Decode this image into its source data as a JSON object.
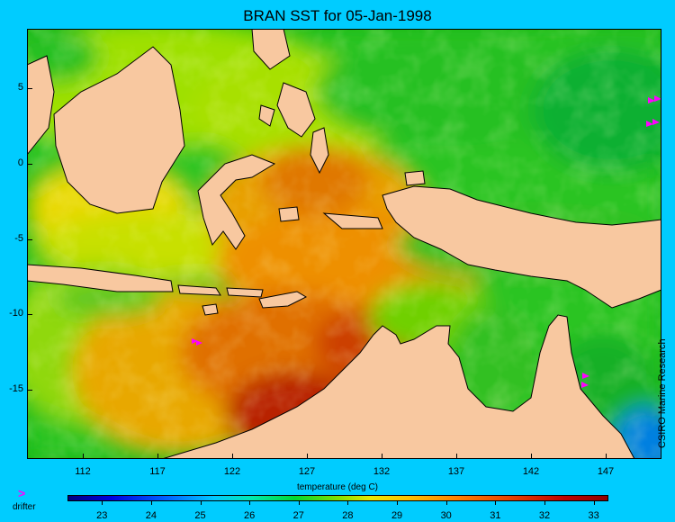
{
  "title": "BRAN SST for 05-Jan-1998",
  "colorbar": {
    "label": "temperature (deg C)",
    "ticks": [
      "23",
      "24",
      "25",
      "26",
      "27",
      "28",
      "29",
      "30",
      "31",
      "32",
      "33"
    ],
    "range": [
      22.3,
      33.3
    ]
  },
  "axes": {
    "x_ticks": [
      "112",
      "117",
      "122",
      "127",
      "132",
      "137",
      "142",
      "147"
    ],
    "y_ticks": [
      "5",
      "0",
      "-5",
      "-10",
      "-15"
    ],
    "lon_range": [
      108.2,
      150.8
    ],
    "lat_range": [
      -19.8,
      8.9
    ]
  },
  "credit": "CSIRO Marine Research",
  "legend": {
    "symbol": ">",
    "label": "drifter"
  },
  "colors": {
    "background": "#00ccff",
    "land": "#f8c8a0",
    "drifter": "#ff00ff"
  }
}
